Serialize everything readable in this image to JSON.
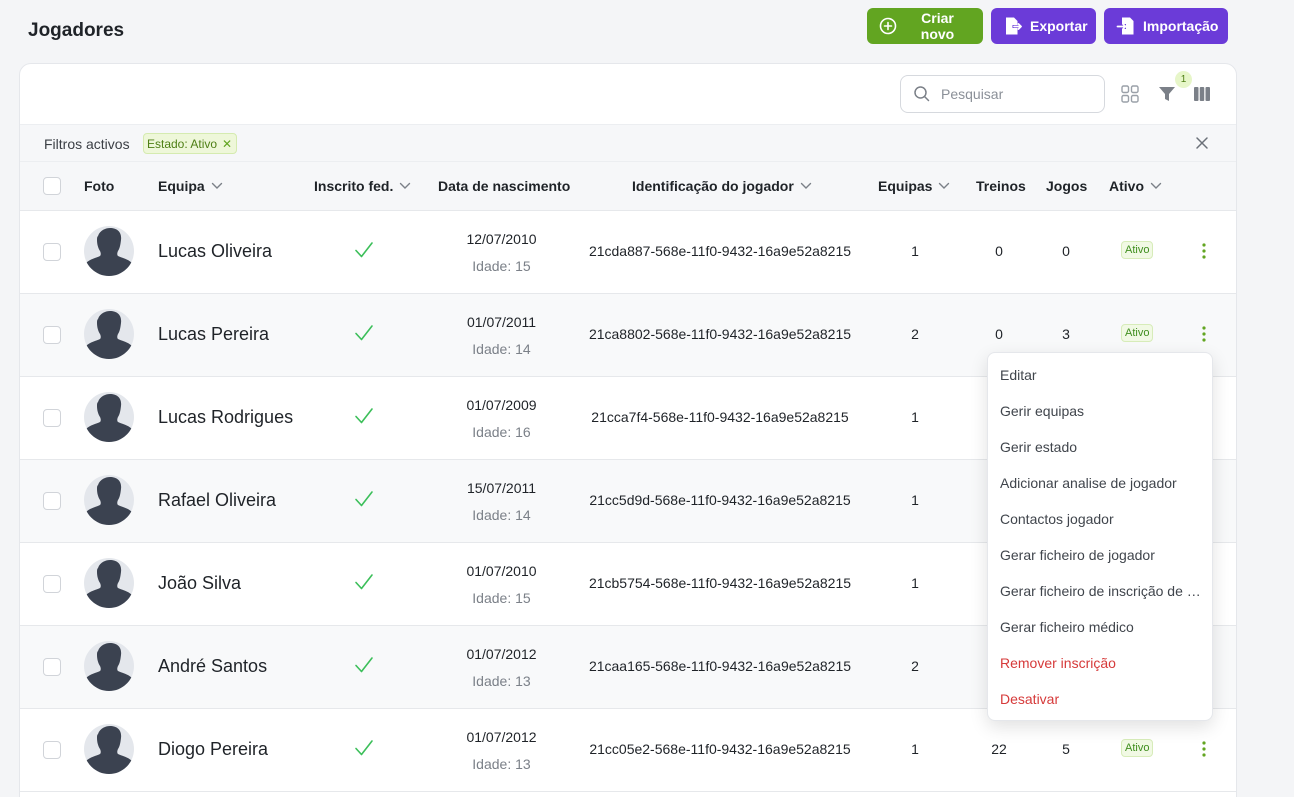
{
  "page": {
    "title": "Jogadores"
  },
  "actions": {
    "create": "Criar novo",
    "export": "Exportar",
    "import": "Importação"
  },
  "toolbar": {
    "search_placeholder": "Pesquisar",
    "filter_count": "1"
  },
  "filters": {
    "label": "Filtros activos",
    "chips": [
      {
        "label": "Estado: Ativo"
      }
    ]
  },
  "columns": {
    "foto": "Foto",
    "equipa": "Equipa",
    "inscrito": "Inscrito fed.",
    "nascimento": "Data de nascimento",
    "identificacao": "Identificação do jogador",
    "equipas": "Equipas",
    "treinos": "Treinos",
    "jogos": "Jogos",
    "ativo": "Ativo"
  },
  "rows": [
    {
      "name": "Lucas Oliveira",
      "dob": "12/07/2010",
      "age": "Idade: 15",
      "id": "21cda887-568e-11f0-9432-16a9e52a8215",
      "equipas": "1",
      "treinos": "0",
      "jogos": "0",
      "status": "Ativo"
    },
    {
      "name": "Lucas Pereira",
      "dob": "01/07/2011",
      "age": "Idade: 14",
      "id": "21ca8802-568e-11f0-9432-16a9e52a8215",
      "equipas": "2",
      "treinos": "0",
      "jogos": "3",
      "status": "Ativo"
    },
    {
      "name": "Lucas Rodrigues",
      "dob": "01/07/2009",
      "age": "Idade: 16",
      "id": "21cca7f4-568e-11f0-9432-16a9e52a8215",
      "equipas": "1",
      "treinos": "",
      "jogos": "",
      "status": ""
    },
    {
      "name": "Rafael Oliveira",
      "dob": "15/07/2011",
      "age": "Idade: 14",
      "id": "21cc5d9d-568e-11f0-9432-16a9e52a8215",
      "equipas": "1",
      "treinos": "",
      "jogos": "",
      "status": ""
    },
    {
      "name": "João Silva",
      "dob": "01/07/2010",
      "age": "Idade: 15",
      "id": "21cb5754-568e-11f0-9432-16a9e52a8215",
      "equipas": "1",
      "treinos": "",
      "jogos": "",
      "status": ""
    },
    {
      "name": "André Santos",
      "dob": "01/07/2012",
      "age": "Idade: 13",
      "id": "21caa165-568e-11f0-9432-16a9e52a8215",
      "equipas": "2",
      "treinos": "",
      "jogos": "",
      "status": ""
    },
    {
      "name": "Diogo Pereira",
      "dob": "01/07/2012",
      "age": "Idade: 13",
      "id": "21cc05e2-568e-11f0-9432-16a9e52a8215",
      "equipas": "1",
      "treinos": "22",
      "jogos": "5",
      "status": "Ativo"
    }
  ],
  "context_menu": {
    "items": [
      {
        "label": "Editar"
      },
      {
        "label": "Gerir equipas"
      },
      {
        "label": "Gerir estado"
      },
      {
        "label": "Adicionar analise de jogador"
      },
      {
        "label": "Contactos jogador"
      },
      {
        "label": "Gerar ficheiro de jogador"
      },
      {
        "label": "Gerar ficheiro de inscrição de jogador"
      },
      {
        "label": "Gerar ficheiro médico"
      },
      {
        "label": "Remover inscrição"
      },
      {
        "label": "Desativar"
      }
    ]
  },
  "colors": {
    "green": "#62a521",
    "purple": "#6b3bd8",
    "danger": "#d63a3a",
    "check": "#3cbf5a"
  }
}
